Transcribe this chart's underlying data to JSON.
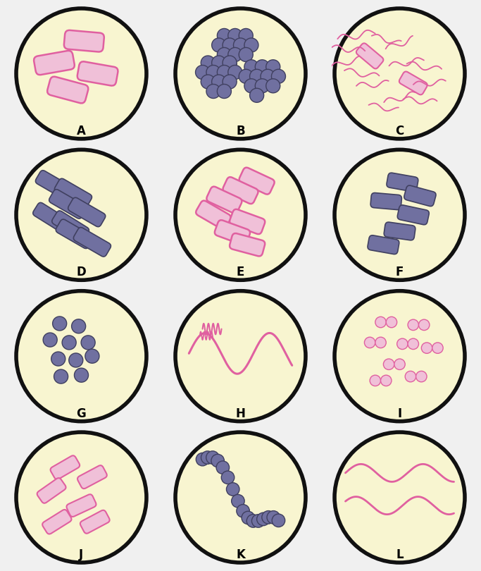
{
  "background_color": "#f0f0f0",
  "circle_fill": "#f8f5d0",
  "circle_edge": "#111111",
  "circle_edge_width": 4.0,
  "pink_fill": "#f0c0d8",
  "pink_edge": "#e060a0",
  "dark_fill": "#7070a0",
  "dark_edge": "#404060",
  "labels": [
    "A",
    "B",
    "C",
    "D",
    "E",
    "F",
    "G",
    "H",
    "I",
    "J",
    "K",
    "L"
  ],
  "fig_width": 6.83,
  "fig_height": 8.1
}
